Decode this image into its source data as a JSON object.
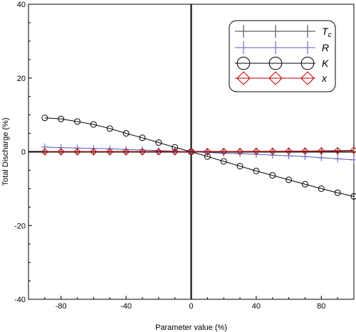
{
  "chart_data": {
    "type": "line",
    "title": "",
    "xlabel": "Parameter value (%)",
    "ylabel": "Total Discharge (%)",
    "xlim": [
      -100,
      100
    ],
    "ylim": [
      -40,
      40
    ],
    "xticks": [
      -80,
      -40,
      0,
      40,
      80
    ],
    "yticks": [
      -40,
      -20,
      0,
      20,
      40
    ],
    "x": [
      -90,
      -80,
      -70,
      -60,
      -50,
      -40,
      -30,
      -20,
      -10,
      0,
      10,
      20,
      30,
      40,
      50,
      60,
      70,
      80,
      90,
      100
    ],
    "legend_position": "top-right",
    "grid": false,
    "series": [
      {
        "name": "T",
        "name_sub": "c",
        "marker": "plus",
        "color": "#3a3a3a",
        "values": [
          0.1,
          0.1,
          0.1,
          0.1,
          0.1,
          0.05,
          0.05,
          0.02,
          0.01,
          0,
          0.0,
          0.0,
          0.0,
          0.0,
          0.0,
          0.0,
          0.0,
          0.0,
          0.0,
          0.0
        ]
      },
      {
        "name": "R",
        "marker": "plus",
        "color": "#5a5ab4",
        "values": [
          1.3,
          1.1,
          1.0,
          0.9,
          0.8,
          0.6,
          0.5,
          0.3,
          0.2,
          0,
          -0.2,
          -0.4,
          -0.5,
          -0.7,
          -0.9,
          -1.1,
          -1.3,
          -1.6,
          -1.9,
          -2.2
        ]
      },
      {
        "name": "K",
        "marker": "circle",
        "color": "#000000",
        "values": [
          9.2,
          8.9,
          8.2,
          7.4,
          6.3,
          5.0,
          3.8,
          2.5,
          1.2,
          0,
          -1.3,
          -2.6,
          -3.9,
          -5.2,
          -6.4,
          -7.6,
          -8.8,
          -10.0,
          -11.1,
          -12.1
        ]
      },
      {
        "name": "x",
        "marker": "diamond",
        "color": "#c00000",
        "values": [
          0,
          0,
          0,
          0,
          0,
          0,
          0,
          0,
          0,
          0,
          0.05,
          0.1,
          0.1,
          0.15,
          0.15,
          0.2,
          0.2,
          0.25,
          0.3,
          0.4
        ]
      }
    ]
  }
}
